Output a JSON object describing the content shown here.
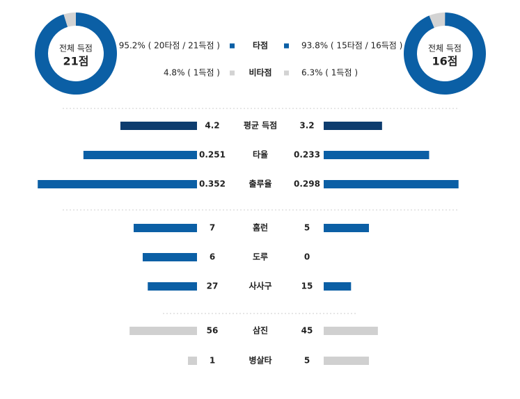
{
  "donuts": [
    {
      "caption": "전체 득점",
      "total": "21점",
      "color": "#0b5fa5",
      "rest_color": "#d3d3d3"
    },
    {
      "caption": "전체 득점",
      "total": "16점",
      "color": "#0b5fa5",
      "rest_color": "#d3d3d3"
    }
  ],
  "legend": [
    {
      "label": "타점",
      "color": "#0b5fa5",
      "left_pct": 95.2,
      "left_text": "95.2% ( 20타점 / 21득점 )",
      "right_pct": 93.8,
      "right_text": "93.8% ( 15타점 / 16득점 )"
    },
    {
      "label": "비타점",
      "color": "#d3d3d3",
      "left_pct": 4.8,
      "left_text": "4.8% ( 1득점 )",
      "right_pct": 6.3,
      "right_text": "6.3% ( 1득점 )"
    }
  ],
  "stats": [
    {
      "label": "평균 득점",
      "left": 4.2,
      "right": 3.2,
      "color": "#0d3c6e"
    },
    {
      "label": "타율",
      "left": 0.251,
      "right": 0.233,
      "color": "#0b5fa5"
    },
    {
      "label": "출루율",
      "left": 0.352,
      "right": 0.298,
      "color": "#0b5fa5"
    },
    {
      "label": "홈런",
      "left": 7,
      "right": 5,
      "color": "#0b5fa5"
    },
    {
      "label": "도루",
      "left": 6,
      "right": 0,
      "color": "#0b5fa5"
    },
    {
      "label": "사사구",
      "left": 27,
      "right": 15,
      "color": "#0b5fa5"
    },
    {
      "label": "삼진",
      "left": 56,
      "right": 45,
      "color": "#d0d0d0"
    },
    {
      "label": "병살타",
      "left": 1,
      "right": 5,
      "color": "#d0d0d0"
    }
  ]
}
